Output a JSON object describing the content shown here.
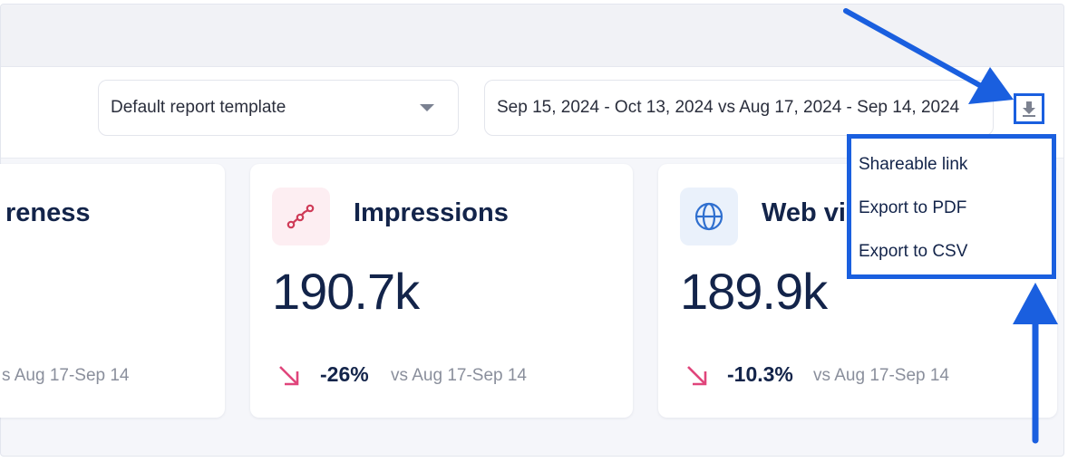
{
  "toolbar": {
    "template_select": {
      "label": "Default report template"
    },
    "date_range": {
      "label": "Sep 15, 2024 - Oct 13, 2024 vs Aug 17, 2024 - Sep 14, 2024"
    }
  },
  "export_menu": {
    "items": [
      {
        "label": "Shareable link"
      },
      {
        "label": "Export to PDF"
      },
      {
        "label": "Export to CSV"
      }
    ]
  },
  "cards": [
    {
      "title": "reness",
      "compare": "s Aug 17-Sep 14"
    },
    {
      "title": "Impressions",
      "value": "190.7k",
      "change": "-26%",
      "compare": "vs Aug 17-Sep 14"
    },
    {
      "title": "Web vi",
      "value": "189.9k",
      "change": "-10.3%",
      "compare": "vs Aug 17-Sep 14"
    }
  ],
  "colors": {
    "accent_blue": "#1a5fdf",
    "navy_text": "#13244a",
    "trend_down": "#e0457b",
    "muted_text": "#8a8f9c"
  },
  "icons": [
    "chevron-down-icon",
    "download-icon",
    "share-nodes-icon",
    "globe-icon",
    "trend-down-arrow-icon",
    "annotation-arrow"
  ]
}
